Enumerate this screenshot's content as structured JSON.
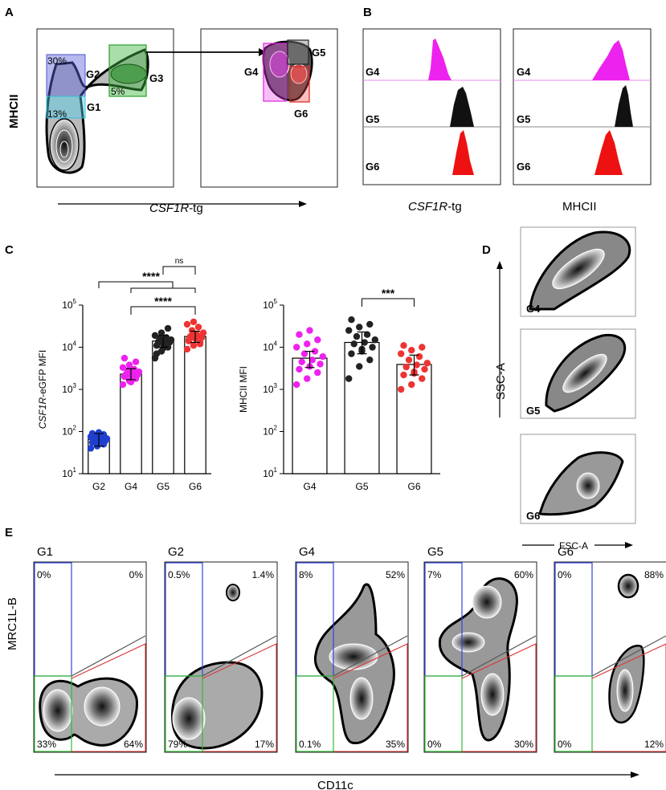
{
  "panel_labels": {
    "a": "A",
    "b": "B",
    "c": "C",
    "d": "D",
    "e": "E"
  },
  "colors": {
    "g2": "#1f3fd0",
    "g4": "#ee22ee",
    "g5": "#222222",
    "g6": "#ee3333",
    "g3": "#2e9e2e"
  },
  "panel_a": {
    "y_title": "MHCII",
    "x_title_italic": "CSF1R",
    "x_title_suffix": "-tg",
    "gates": {
      "g1": "G1",
      "g2": "G2",
      "g3": "G3",
      "g4": "G4",
      "g5": "G5",
      "g6": "G6"
    },
    "percents": {
      "g2": "30%",
      "g1": "13%",
      "g3": "5%"
    }
  },
  "panel_b": {
    "x_title_left_italic": "CSF1R",
    "x_title_left_suffix": "-tg",
    "x_title_right": "MHCII",
    "row_labels": [
      "G4",
      "G5",
      "G6"
    ]
  },
  "panel_d": {
    "y_title": "SSC-A",
    "x_title": "FSC-A",
    "row_labels": [
      "G4",
      "G5",
      "G6"
    ]
  },
  "panel_e": {
    "x_title": "CD11c",
    "y_title": "MRC1L-B",
    "plots": [
      {
        "title": "G1",
        "tl": "0%",
        "tr": "0%",
        "bl": "33%",
        "br": "64%"
      },
      {
        "title": "G2",
        "tl": "0.5%",
        "tr": "1.4%",
        "bl": "79%",
        "br": "17%"
      },
      {
        "title": "G4",
        "tl": "8%",
        "tr": "52%",
        "bl": "0.1%",
        "br": "35%"
      },
      {
        "title": "G5",
        "tl": "7%",
        "tr": "60%",
        "bl": "0%",
        "br": "30%"
      },
      {
        "title": "G6",
        "tl": "0%",
        "tr": "88%",
        "bl": "0%",
        "br": "12%"
      }
    ]
  },
  "chart_data": [
    {
      "type": "bar",
      "title": "",
      "ylabel_italic": "CSF1R",
      "ylabel_suffix": "-eGFP MFI",
      "xlabel": "",
      "yscale": "log",
      "ylim": [
        10,
        100000
      ],
      "ytick_bases": [
        "10",
        "10",
        "10",
        "10",
        "10"
      ],
      "ytick_exps": [
        "1",
        "2",
        "3",
        "4",
        "5"
      ],
      "categories": [
        "G2",
        "G4",
        "G5",
        "G6"
      ],
      "values": [
        65,
        2300,
        14000,
        18000
      ],
      "errors": [
        [
          45,
          90
        ],
        [
          1700,
          3100
        ],
        [
          10000,
          19000
        ],
        [
          13000,
          24000
        ]
      ],
      "points": [
        [
          40,
          45,
          50,
          55,
          58,
          60,
          62,
          65,
          68,
          70,
          72,
          75,
          80,
          85,
          90,
          95
        ],
        [
          1300,
          1600,
          1800,
          2000,
          2100,
          2200,
          2300,
          2400,
          2600,
          2800,
          3000,
          3300,
          3800,
          4500,
          5500,
          1500
        ],
        [
          5500,
          8000,
          10000,
          11000,
          12000,
          13000,
          13500,
          14000,
          15000,
          16000,
          17000,
          19000,
          22000,
          28000,
          7000,
          9500
        ],
        [
          9000,
          11000,
          13000,
          14000,
          16000,
          17000,
          18000,
          20000,
          22000,
          25000,
          30000,
          35000,
          40000,
          12000,
          15000,
          19000
        ]
      ],
      "significance": [
        {
          "label": "****",
          "level": 1
        },
        {
          "label": "ns",
          "level": 1
        },
        {
          "label": "****",
          "level": 2
        }
      ]
    },
    {
      "type": "bar",
      "title": "",
      "ylabel": "MHCII MFI",
      "xlabel": "",
      "yscale": "log",
      "ylim": [
        10,
        100000
      ],
      "ytick_bases": [
        "10",
        "10",
        "10",
        "10",
        "10"
      ],
      "ytick_exps": [
        "1",
        "2",
        "3",
        "4",
        "5"
      ],
      "categories": [
        "G4",
        "G5",
        "G6"
      ],
      "values": [
        5500,
        13000,
        3900
      ],
      "errors": [
        [
          3300,
          8000
        ],
        [
          7000,
          23000
        ],
        [
          2200,
          6500
        ]
      ],
      "points": [
        [
          1300,
          1800,
          2500,
          3000,
          3500,
          4000,
          4500,
          5000,
          6000,
          7000,
          8000,
          10000,
          12000,
          15000,
          20000,
          25000
        ],
        [
          1800,
          3500,
          5000,
          7000,
          9000,
          10000,
          12000,
          13000,
          15000,
          18000,
          20000,
          25000,
          30000,
          35000,
          45000,
          8000
        ],
        [
          1000,
          1300,
          1800,
          2200,
          2600,
          3000,
          3400,
          3800,
          4200,
          5000,
          6000,
          7000,
          8500,
          10000,
          11000,
          2400
        ]
      ],
      "significance": [
        {
          "label": "***",
          "level": 1
        }
      ]
    }
  ]
}
